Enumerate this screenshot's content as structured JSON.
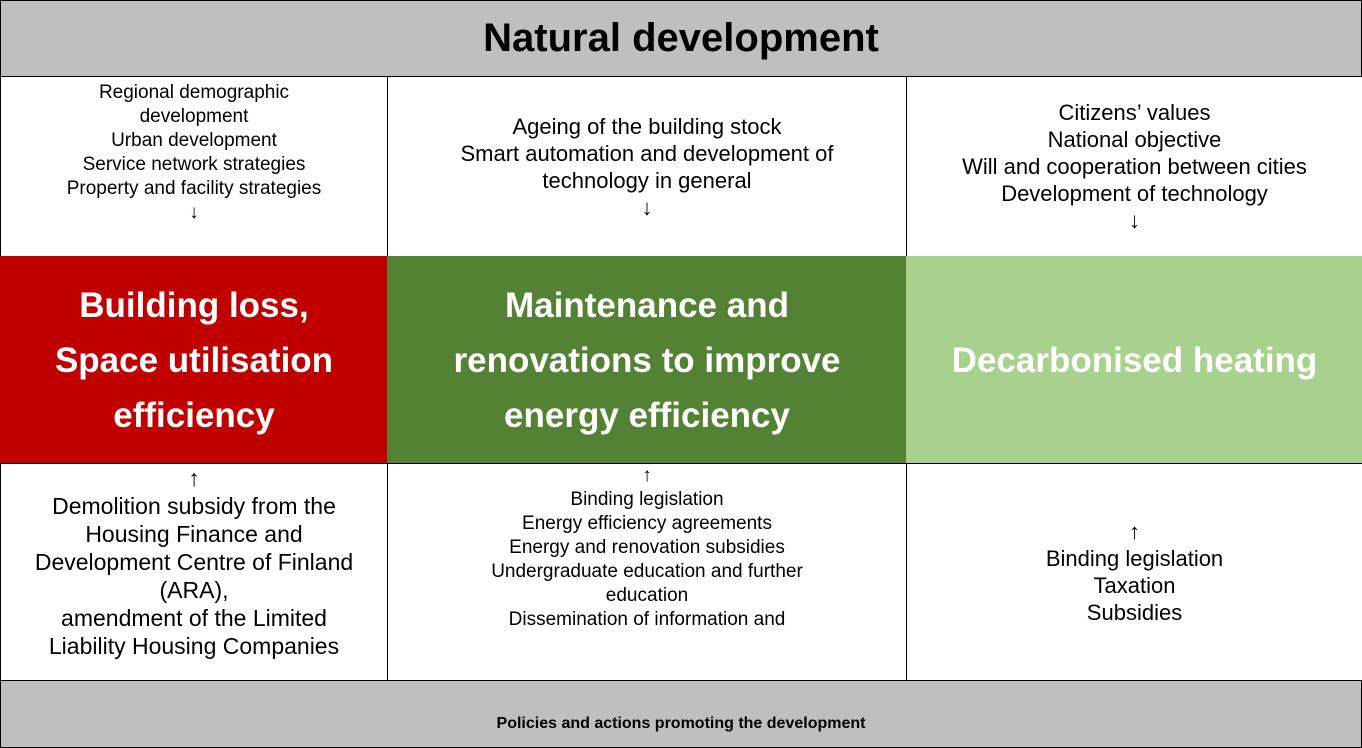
{
  "header": {
    "title": "Natural development"
  },
  "columns": [
    {
      "top": [
        "Regional demographic",
        "development",
        "Urban development",
        "Service network strategies",
        "Property and facility strategies",
        "↓"
      ],
      "middle": [
        "Building loss,",
        "Space utilisation",
        "efficiency"
      ],
      "bottom": [
        "↑",
        "Demolition subsidy from the",
        "Housing Finance and",
        "Development Centre of Finland",
        "(ARA),",
        "amendment of the Limited",
        "Liability Housing Companies"
      ]
    },
    {
      "top": [
        "Ageing of the building stock",
        "Smart automation and development of",
        "technology in general",
        "↓"
      ],
      "middle": [
        "Maintenance and",
        "renovations to improve",
        "energy efficiency"
      ],
      "bottom": [
        "↑",
        "Binding legislation",
        "Energy efficiency agreements",
        "Energy and renovation subsidies",
        "Undergraduate education and further",
        "education",
        "Dissemination of information and"
      ]
    },
    {
      "top": [
        "Citizens’ values",
        "National objective",
        "Will and cooperation between cities",
        "Development of technology",
        "↓"
      ],
      "middle": [
        "Decarbonised heating"
      ],
      "bottom": [
        "↑",
        "Binding legislation",
        "Taxation",
        "Subsidies"
      ]
    }
  ],
  "footer": {
    "title": "Policies and actions promoting the development"
  }
}
